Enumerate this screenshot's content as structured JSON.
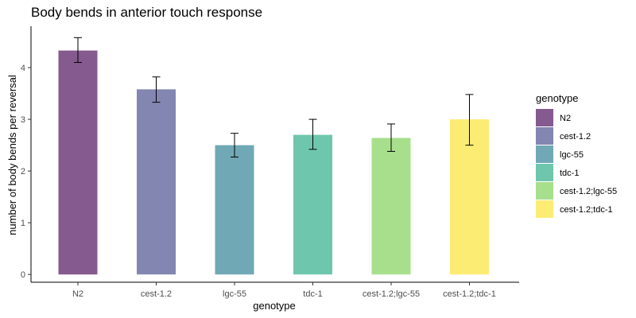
{
  "chart_data": {
    "type": "bar",
    "title": "Body bends in anterior touch response",
    "xlabel": "genotype",
    "ylabel": "number of body bends per reversal",
    "categories": [
      "N2",
      "cest-1.2",
      "lgc-55",
      "tdc-1",
      "cest-1.2;lgc-55",
      "cest-1.2;tdc-1"
    ],
    "values": [
      4.33,
      3.58,
      2.5,
      2.7,
      2.64,
      3.0
    ],
    "error_low": [
      4.1,
      3.33,
      2.27,
      2.42,
      2.38,
      2.5
    ],
    "error_high": [
      4.58,
      3.82,
      2.73,
      3.0,
      2.91,
      3.48
    ],
    "colors": [
      "#855a8e",
      "#8386b1",
      "#71a8b5",
      "#6ec6ad",
      "#a8df8c",
      "#fcec74"
    ],
    "ylim": [
      -0.15,
      4.8
    ],
    "yticks": [
      0,
      1,
      2,
      3,
      4
    ],
    "grid": false,
    "legend": {
      "title": "genotype",
      "placement": "right"
    }
  }
}
